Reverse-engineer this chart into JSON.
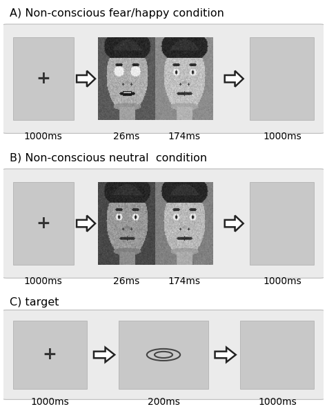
{
  "title_A": "A) Non-conscious fear/happy condition",
  "title_B": "B) Non-conscious neutral  condition",
  "title_C": "C) target",
  "bg_color": "#ffffff",
  "panel_bg": "#ebebeb",
  "box_light": "#cccccc",
  "arrow_fc": "#ffffff",
  "arrow_ec": "#222222",
  "title_fontsize": 11.5,
  "label_fontsize": 10,
  "cross_fontsize": 16
}
